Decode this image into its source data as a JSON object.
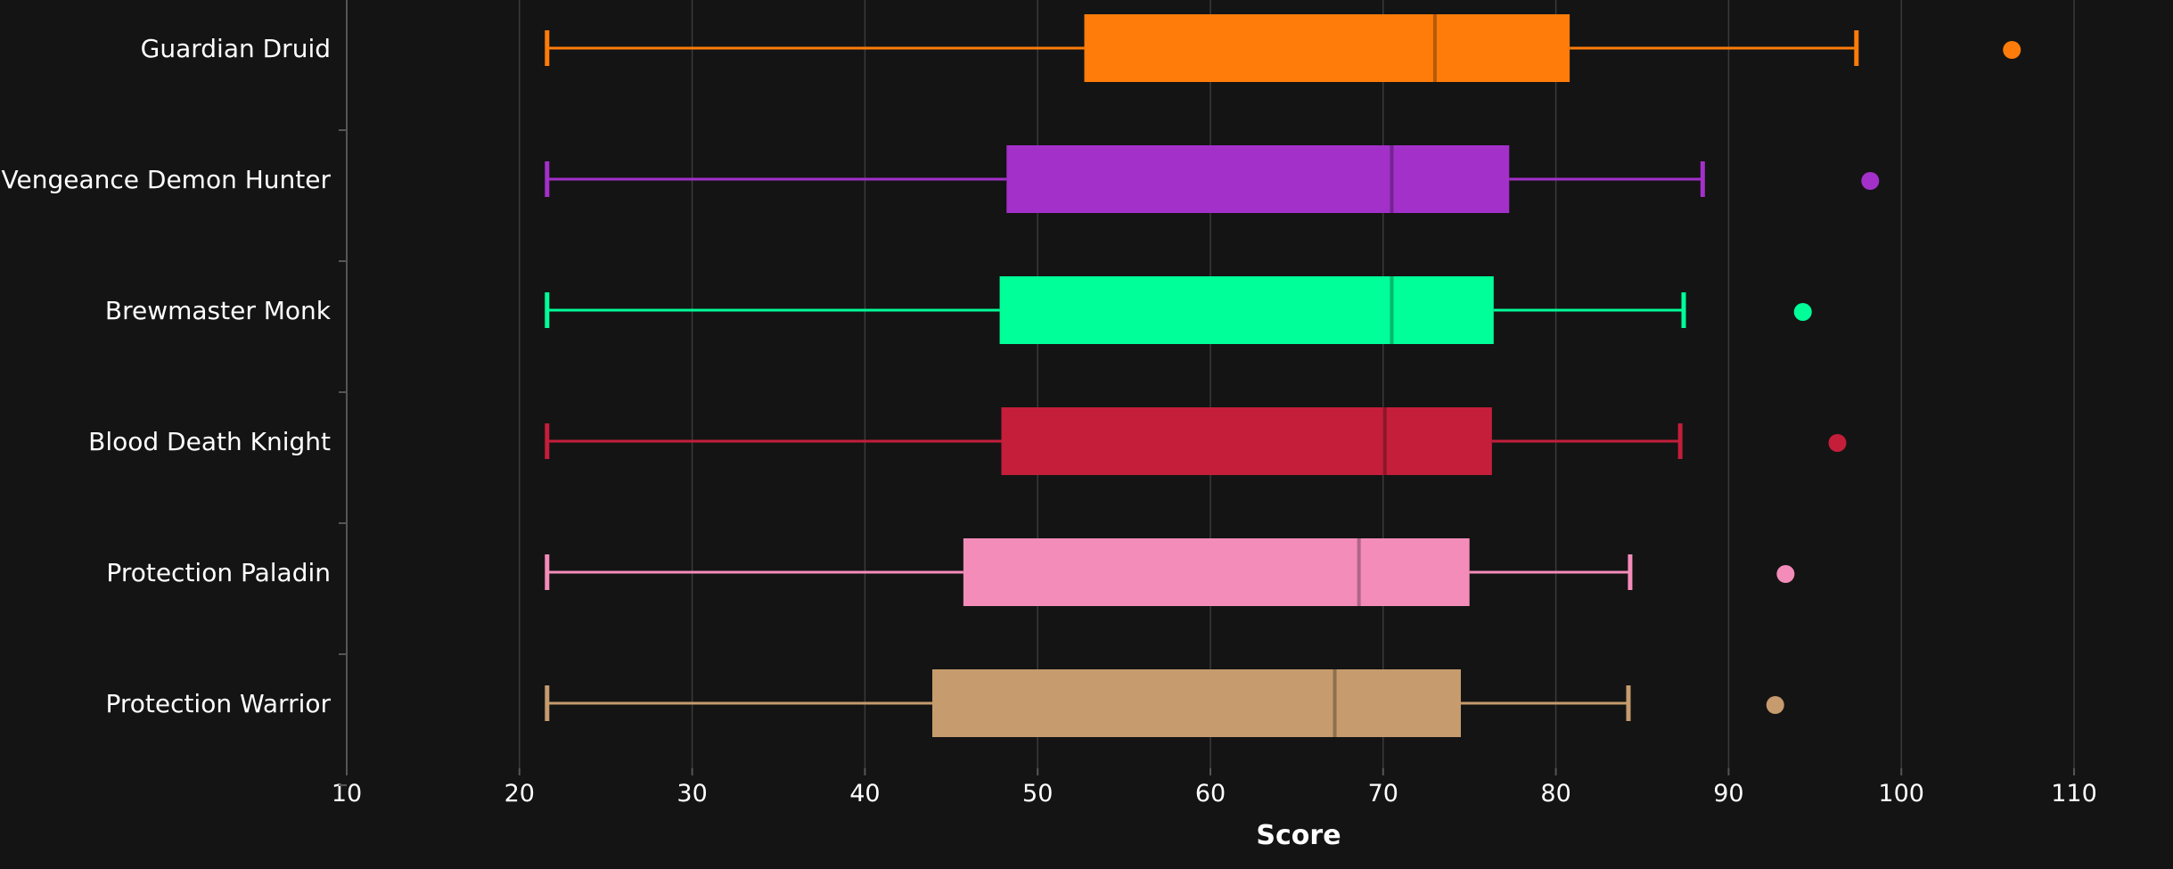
{
  "chart_data": {
    "type": "box",
    "orientation": "horizontal",
    "title": "",
    "xlabel": "Score",
    "ylabel": "",
    "xlim": [
      10,
      110
    ],
    "xticks": [
      10,
      20,
      30,
      40,
      50,
      60,
      70,
      80,
      90,
      100,
      110
    ],
    "grid": true,
    "legend": "none",
    "background": "#141414",
    "categories": [
      "Guardian Druid",
      "Vengeance Demon Hunter",
      "Brewmaster Monk",
      "Blood Death Knight",
      "Protection Paladin",
      "Protection Warrior"
    ],
    "series": [
      {
        "category": "Guardian Druid",
        "color": "#FF7C0A",
        "min": 21.6,
        "q1": 52.7,
        "median": 73.0,
        "q3": 80.8,
        "max": 97.4,
        "outliers": [
          106.4
        ]
      },
      {
        "category": "Vengeance Demon Hunter",
        "color": "#A330C9",
        "min": 21.6,
        "q1": 48.2,
        "median": 70.5,
        "q3": 77.3,
        "max": 88.5,
        "outliers": [
          98.2
        ]
      },
      {
        "category": "Brewmaster Monk",
        "color": "#00FF98",
        "min": 21.6,
        "q1": 47.8,
        "median": 70.5,
        "q3": 76.4,
        "max": 87.4,
        "outliers": [
          94.3
        ]
      },
      {
        "category": "Blood Death Knight",
        "color": "#C41E3A",
        "min": 21.6,
        "q1": 47.9,
        "median": 70.1,
        "q3": 76.3,
        "max": 87.2,
        "outliers": [
          96.3
        ]
      },
      {
        "category": "Protection Paladin",
        "color": "#F48CBA",
        "min": 21.6,
        "q1": 45.7,
        "median": 68.6,
        "q3": 75.0,
        "max": 84.3,
        "outliers": [
          93.3
        ]
      },
      {
        "category": "Protection Warrior",
        "color": "#C69B6D",
        "min": 21.6,
        "q1": 43.9,
        "median": 67.2,
        "q3": 74.5,
        "max": 84.2,
        "outliers": [
          92.7
        ]
      }
    ]
  }
}
